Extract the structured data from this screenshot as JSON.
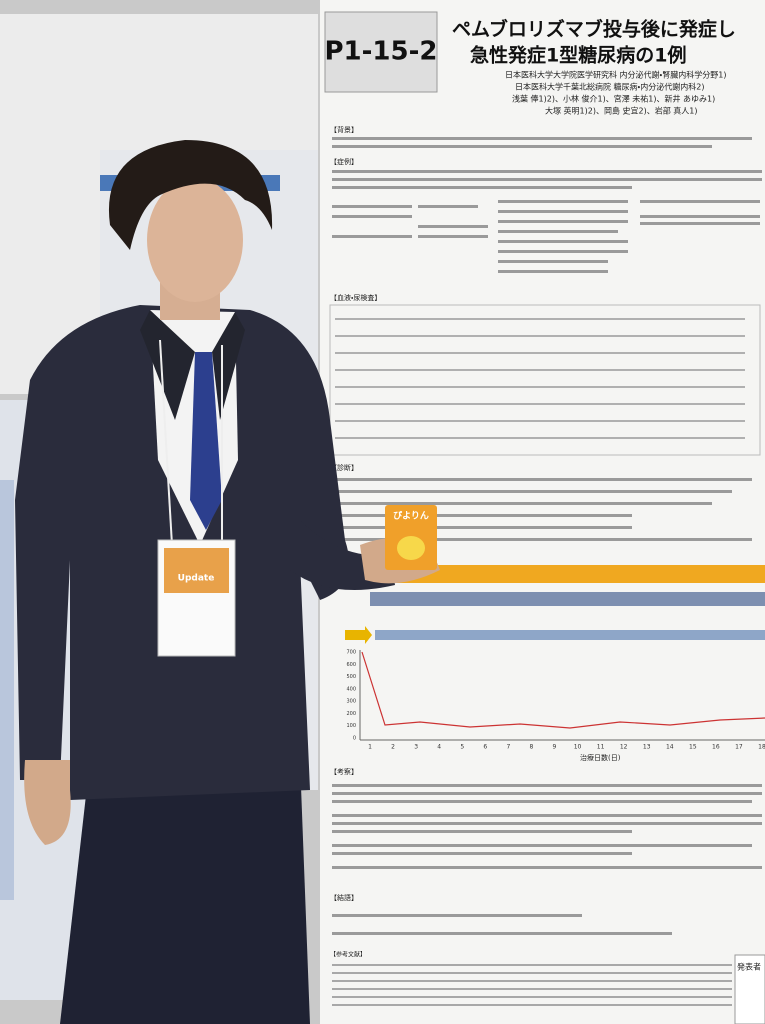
{
  "poster": {
    "number": "P1-15-2",
    "title": [
      "ペムブロリズマブ投与後に発症し",
      "急性発症1型糖尿病の1例"
    ],
    "affiliations": [
      "日本医科大学大学院医学研究科 内分泌代謝・腎臓内科学分野1)",
      "日本医科大学千葉北総病院 糖尿病・内分泌代謝内科2)"
    ],
    "authors": [
      "浅葉 俸1)2)、小林 俊介1)、宮澤 未祐1)、新井 あゆみ1)",
      "大塚 英明1)2)、岡島 史宜2)、岩部 真人1)"
    ],
    "sections": {
      "background": "【背景】",
      "case": "【症例】",
      "labs": "【血液・尿検査】",
      "diagnosis": "【診断】",
      "discussion": "【考察】",
      "conclusion": "【結語】",
      "references": "【参考文献】"
    },
    "chart": {
      "xlabel": "治療日数(日)",
      "xticks": [
        1,
        2,
        3,
        4,
        5,
        6,
        7,
        8,
        9,
        10,
        11,
        12,
        13,
        14,
        15,
        16,
        17,
        18
      ],
      "yticks": [
        700,
        600,
        500,
        400,
        300,
        200,
        100,
        0
      ]
    },
    "presenter": "発表者"
  },
  "badge": {
    "title": "Update"
  },
  "snack": "ぴよりん"
}
